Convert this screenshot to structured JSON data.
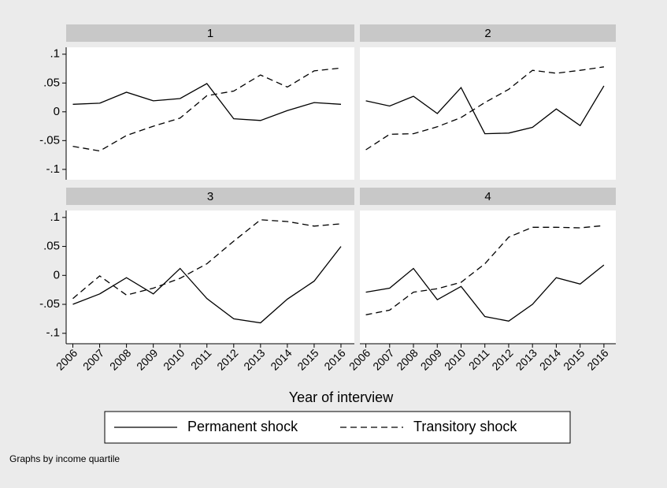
{
  "chart_data": [
    {
      "type": "line",
      "title": "1",
      "x": [
        2006,
        2007,
        2008,
        2009,
        2010,
        2011,
        2012,
        2013,
        2014,
        2015,
        2016
      ],
      "xlim": [
        2005.75,
        2016.5
      ],
      "ylim": [
        -0.118,
        0.112
      ],
      "yticks": [
        {
          "value": 0.1,
          "label": ".1"
        },
        {
          "value": 0.05,
          "label": ".05"
        },
        0,
        {
          "value": -0.05,
          "label": "-.05"
        },
        {
          "value": -0.1,
          "label": "-.1"
        }
      ],
      "series": [
        {
          "name": "Permanent shock",
          "color": "#000000",
          "style": "solid",
          "values": [
            0.013,
            0.015,
            0.034,
            0.019,
            0.023,
            0.049,
            -0.012,
            -0.015,
            0.002,
            0.016,
            0.013
          ]
        },
        {
          "name": "Transitory shock",
          "color": "#000000",
          "style": "dashed",
          "values": [
            -0.06,
            -0.068,
            -0.041,
            -0.025,
            -0.011,
            0.028,
            0.036,
            0.064,
            0.043,
            0.071,
            0.076
          ]
        }
      ]
    },
    {
      "type": "line",
      "title": "2",
      "x": [
        2006,
        2007,
        2008,
        2009,
        2010,
        2011,
        2012,
        2013,
        2014,
        2015,
        2016
      ],
      "xlim": [
        2005.75,
        2016.5
      ],
      "ylim": [
        -0.118,
        0.112
      ],
      "series": [
        {
          "color": "#000000",
          "style": "solid",
          "values": [
            0.019,
            0.01,
            0.027,
            -0.003,
            0.042,
            -0.038,
            -0.037,
            -0.027,
            0.005,
            -0.024,
            0.045
          ]
        },
        {
          "color": "#000000",
          "style": "dashed",
          "values": [
            -0.066,
            -0.039,
            -0.038,
            -0.026,
            -0.01,
            0.016,
            0.039,
            0.072,
            0.067,
            0.072,
            0.078
          ]
        }
      ]
    },
    {
      "type": "line",
      "title": "3",
      "x": [
        2006,
        2007,
        2008,
        2009,
        2010,
        2011,
        2012,
        2013,
        2014,
        2015,
        2016
      ],
      "xlim": [
        2005.75,
        2016.5
      ],
      "ylim": [
        -0.118,
        0.112
      ],
      "xticks": [
        2006,
        2007,
        2008,
        2009,
        2010,
        2011,
        2012,
        2013,
        2014,
        2015,
        2016
      ],
      "yticks": [
        {
          "value": 0.1,
          "label": ".1"
        },
        {
          "value": 0.05,
          "label": ".05"
        },
        0,
        {
          "value": -0.05,
          "label": "-.05"
        },
        {
          "value": -0.1,
          "label": "-.1"
        }
      ],
      "series": [
        {
          "color": "#000000",
          "style": "solid",
          "values": [
            -0.05,
            -0.032,
            -0.004,
            -0.032,
            0.012,
            -0.04,
            -0.075,
            -0.082,
            -0.041,
            -0.01,
            0.05
          ]
        },
        {
          "color": "#000000",
          "style": "dashed",
          "values": [
            -0.04,
            -0.001,
            -0.034,
            -0.022,
            -0.005,
            0.02,
            0.059,
            0.096,
            0.093,
            0.085,
            0.089
          ]
        }
      ]
    },
    {
      "type": "line",
      "title": "4",
      "x": [
        2006,
        2007,
        2008,
        2009,
        2010,
        2011,
        2012,
        2013,
        2014,
        2015,
        2016
      ],
      "xlim": [
        2005.75,
        2016.5
      ],
      "ylim": [
        -0.118,
        0.112
      ],
      "xticks": [
        2006,
        2007,
        2008,
        2009,
        2010,
        2011,
        2012,
        2013,
        2014,
        2015,
        2016
      ],
      "series": [
        {
          "color": "#000000",
          "style": "solid",
          "values": [
            -0.029,
            -0.022,
            0.012,
            -0.042,
            -0.019,
            -0.071,
            -0.079,
            -0.05,
            -0.004,
            -0.015,
            0.018
          ]
        },
        {
          "color": "#000000",
          "style": "dashed",
          "values": [
            -0.068,
            -0.06,
            -0.029,
            -0.023,
            -0.012,
            0.02,
            0.066,
            0.083,
            0.083,
            0.082,
            0.086
          ]
        }
      ]
    }
  ],
  "xlabel": "Year of interview",
  "note": "Graphs by income quartile"
}
